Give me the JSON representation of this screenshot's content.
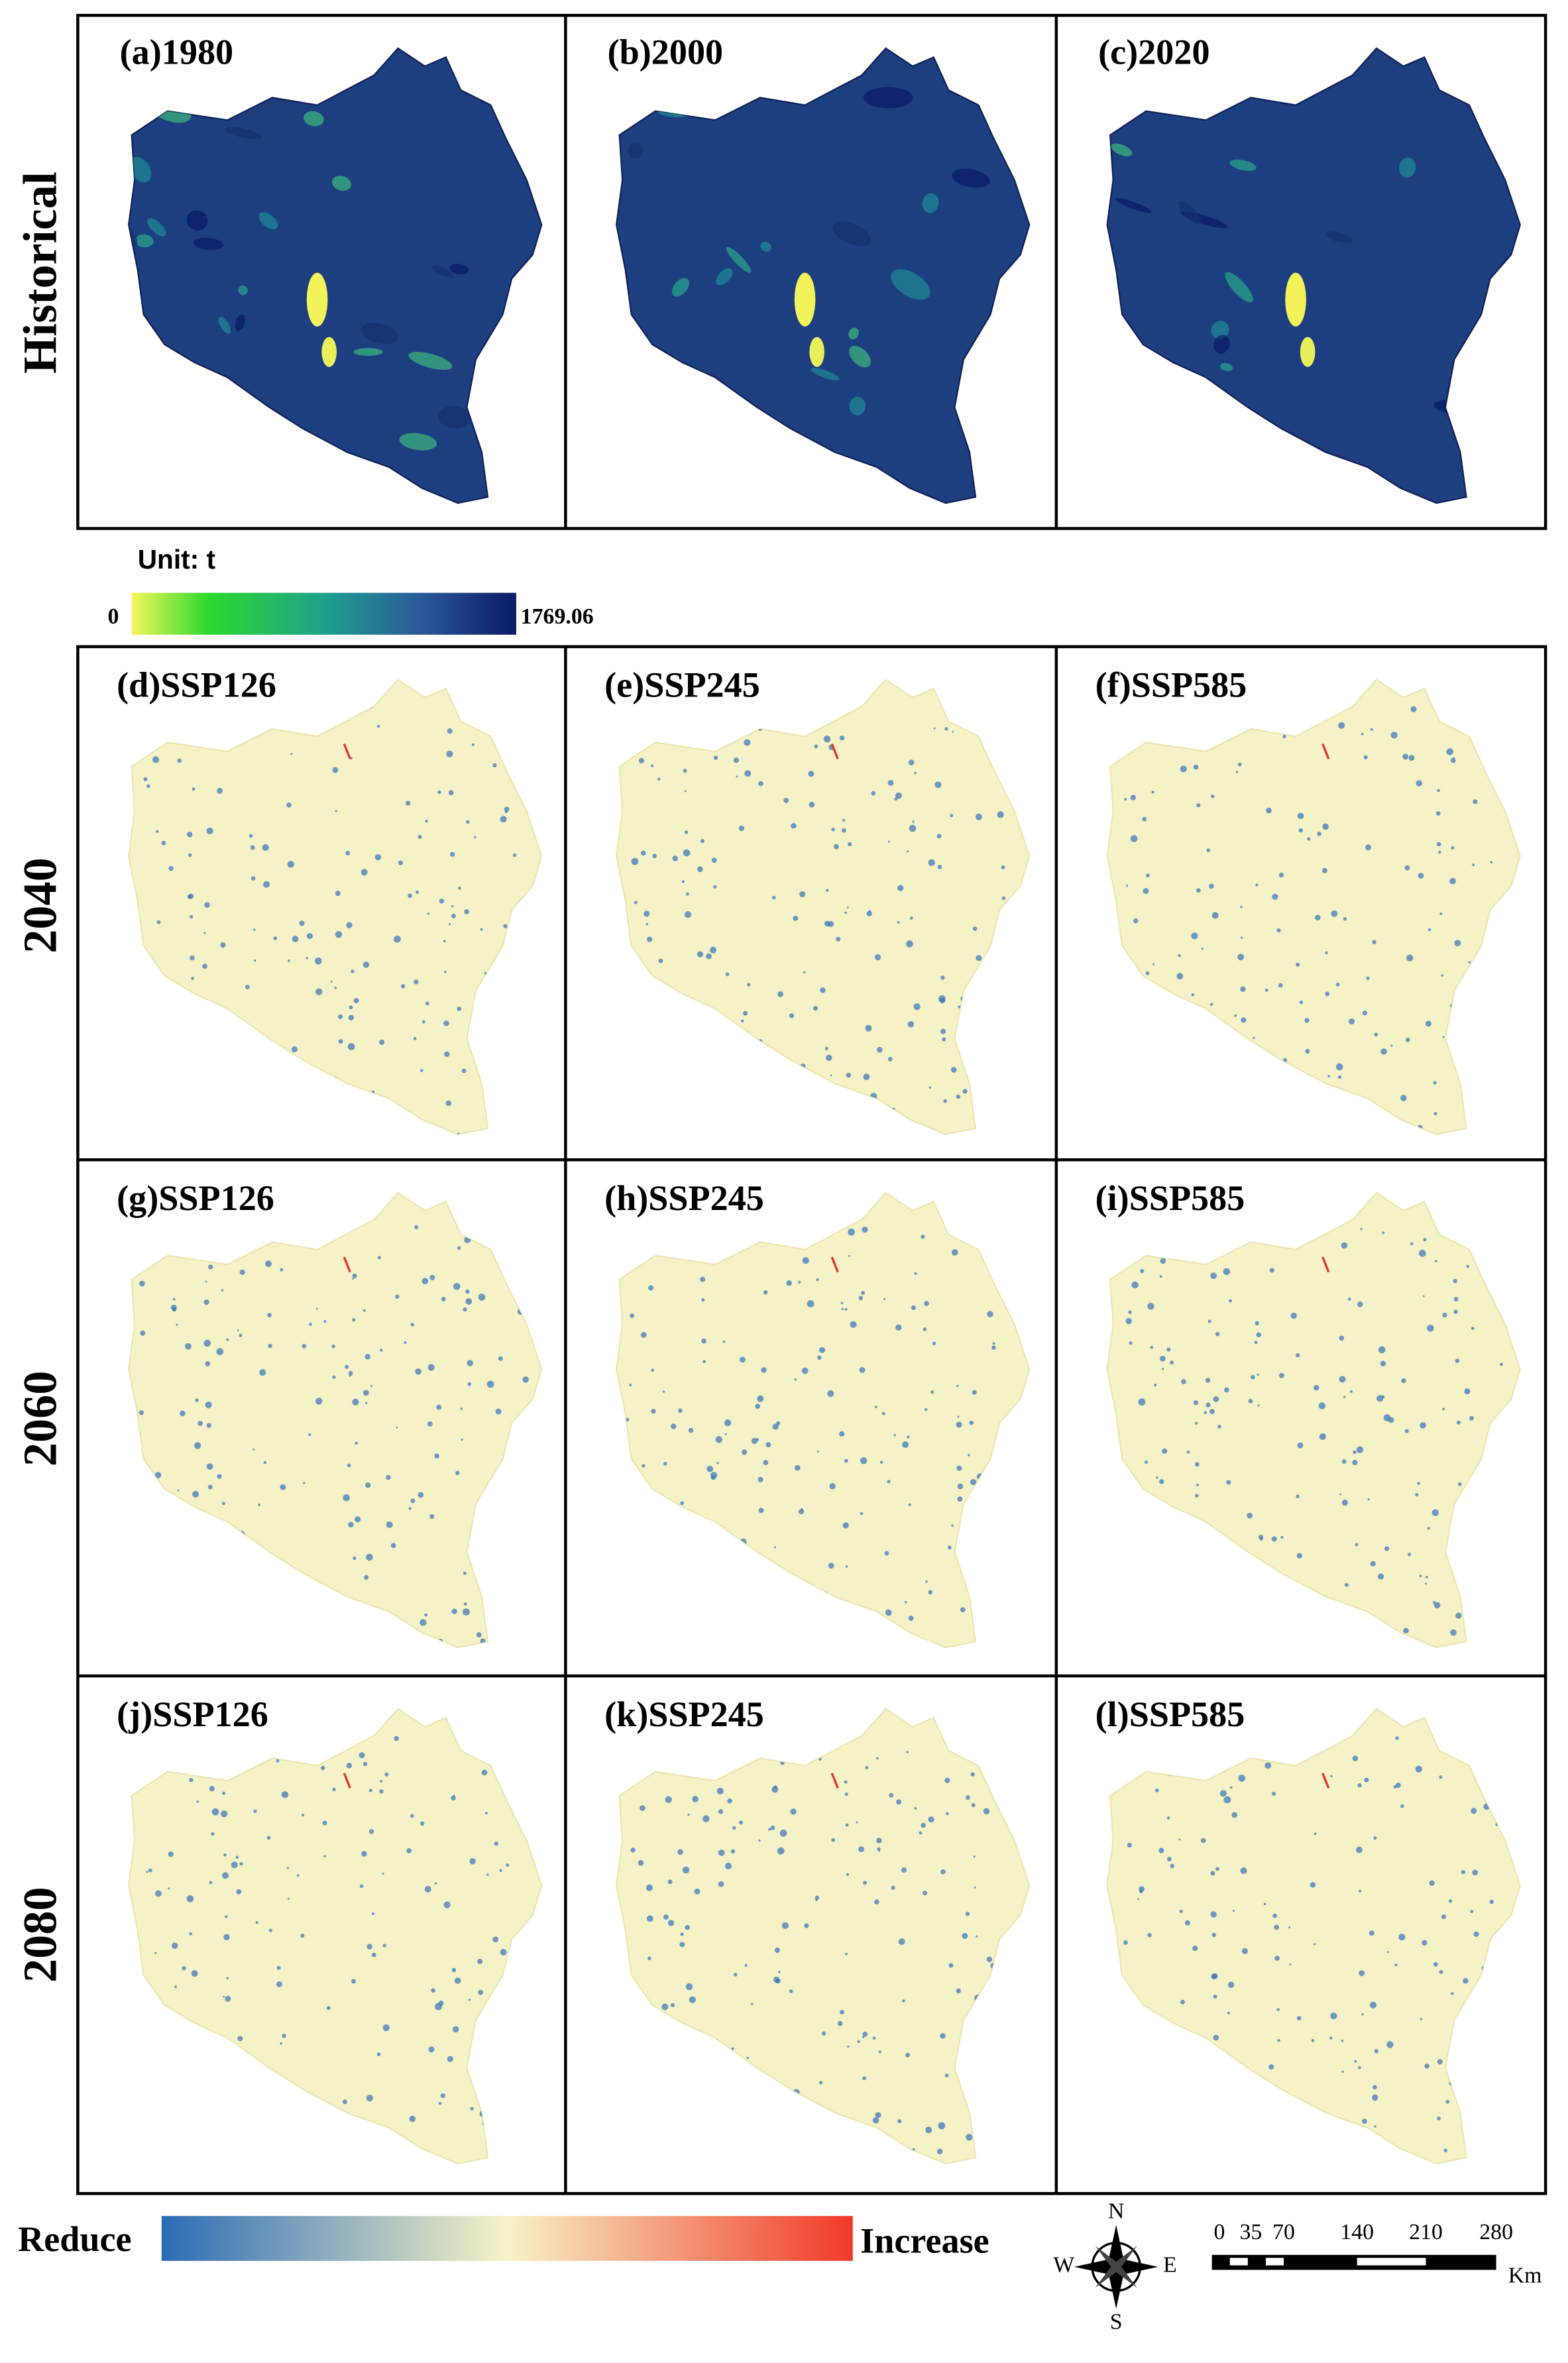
{
  "historical": {
    "row_label": "Historical",
    "panels": [
      "(a)1980",
      "(b)2000",
      "(c)2020"
    ]
  },
  "legend": {
    "unit": "Unit: t",
    "min": 0,
    "max": 1769.06
  },
  "future": {
    "rows": [
      {
        "label": "2040",
        "panels": [
          "(d)SSP126",
          "(e)SSP245",
          "(f)SSP585"
        ]
      },
      {
        "label": "2060",
        "panels": [
          "(g)SSP126",
          "(h)SSP245",
          "(i)SSP585"
        ]
      },
      {
        "label": "2080",
        "panels": [
          "(j)SSP126",
          "(k)SSP245",
          "(l)SSP585"
        ]
      }
    ]
  },
  "change_legend": {
    "low": "Reduce",
    "high": "Increase"
  },
  "compass": {
    "n": "N",
    "e": "E",
    "s": "S",
    "w": "W"
  },
  "scale_bar": {
    "labels": [
      0,
      35,
      70,
      140,
      210,
      280
    ],
    "unit": "Km"
  }
}
